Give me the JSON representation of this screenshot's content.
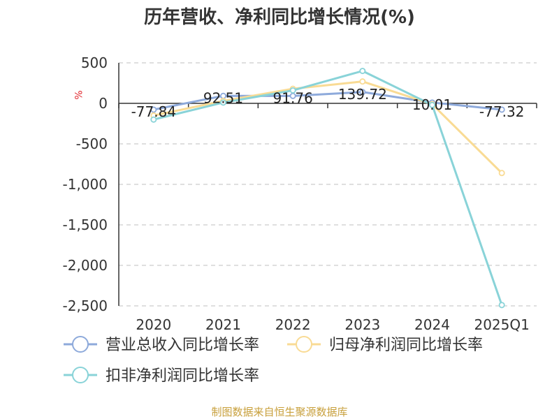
{
  "chart_data": {
    "type": "line",
    "title": "历年营收、净利同比增长情况(%)",
    "ylabel": "%",
    "categories": [
      "2020",
      "2021",
      "2022",
      "2023",
      "2024",
      "2025Q1"
    ],
    "ylim": [
      -2500,
      500
    ],
    "yticks": [
      500,
      0,
      -500,
      -1000,
      -1500,
      -2000,
      -2500
    ],
    "ytick_labels": [
      "500",
      "0",
      "-500",
      "-1,000",
      "-1,500",
      "-2,000",
      "-2,500"
    ],
    "grid": true,
    "legend_position": "bottom-left",
    "series": [
      {
        "name": "营业总收入同比增长率",
        "color": "#8eaadb",
        "values": [
          -77.84,
          92.51,
          91.76,
          139.72,
          10.01,
          -77.32
        ],
        "labels": [
          "-77.84",
          "92.51",
          "91.76",
          "139.72",
          "10.01",
          "-77.32"
        ]
      },
      {
        "name": "归母净利润同比增长率",
        "color": "#f9db94",
        "values": [
          -150,
          30,
          180,
          270,
          -10,
          -860
        ]
      },
      {
        "name": "扣非净利润同比增长率",
        "color": "#89d3d8",
        "values": [
          -200,
          10,
          160,
          400,
          -20,
          -2490
        ]
      }
    ]
  },
  "source": "制图数据来自恒生聚源数据库",
  "colors": {
    "title": "#333333",
    "grid": "#cccccc",
    "axis": "#333333",
    "unit": "#e0282e",
    "source": "#c8a03c"
  }
}
